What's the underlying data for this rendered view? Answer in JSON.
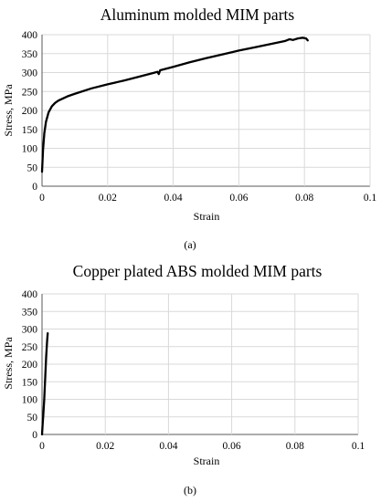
{
  "chart_data": [
    {
      "type": "line",
      "title": "Aluminum molded MIM parts",
      "xlabel": "Strain",
      "ylabel": "Stress, MPa",
      "xlim": [
        0,
        0.1
      ],
      "ylim": [
        0,
        400
      ],
      "x_ticks": [
        "0",
        "0.02",
        "0.04",
        "0.06",
        "0.08",
        "0.1"
      ],
      "y_ticks": [
        "0",
        "50",
        "100",
        "150",
        "200",
        "250",
        "300",
        "350",
        "400"
      ],
      "grid": true,
      "caption": "(a)",
      "series": [
        {
          "points": [
            [
              0.0,
              38
            ],
            [
              0.0003,
              95
            ],
            [
              0.0007,
              140
            ],
            [
              0.0012,
              170
            ],
            [
              0.002,
              195
            ],
            [
              0.003,
              211
            ],
            [
              0.004,
              220
            ],
            [
              0.005,
              226
            ],
            [
              0.0065,
              232
            ],
            [
              0.008,
              238
            ],
            [
              0.01,
              244
            ],
            [
              0.015,
              258
            ],
            [
              0.02,
              269
            ],
            [
              0.025,
              279
            ],
            [
              0.03,
              290
            ],
            [
              0.034,
              299
            ],
            [
              0.0352,
              302
            ],
            [
              0.0356,
              296
            ],
            [
              0.036,
              306
            ],
            [
              0.04,
              315
            ],
            [
              0.045,
              327
            ],
            [
              0.05,
              338
            ],
            [
              0.055,
              348
            ],
            [
              0.06,
              358
            ],
            [
              0.065,
              367
            ],
            [
              0.07,
              376
            ],
            [
              0.074,
              383
            ],
            [
              0.0755,
              388
            ],
            [
              0.0765,
              386
            ],
            [
              0.078,
              390
            ],
            [
              0.0795,
              392
            ],
            [
              0.0805,
              390
            ],
            [
              0.081,
              385
            ]
          ]
        }
      ]
    },
    {
      "type": "line",
      "title": "Copper plated ABS molded MIM parts",
      "xlabel": "Strain",
      "ylabel": "Stress, MPa",
      "xlim": [
        0,
        0.1
      ],
      "ylim": [
        0,
        400
      ],
      "x_ticks": [
        "0",
        "0.02",
        "0.04",
        "0.06",
        "0.08",
        "0.1"
      ],
      "y_ticks": [
        "0",
        "50",
        "100",
        "150",
        "200",
        "250",
        "300",
        "350",
        "400"
      ],
      "grid": true,
      "caption": "(b)",
      "series": [
        {
          "points": [
            [
              0.0,
              0
            ],
            [
              0.0002,
              30
            ],
            [
              0.0004,
              55
            ],
            [
              0.0007,
              100
            ],
            [
              0.001,
              160
            ],
            [
              0.0013,
              220
            ],
            [
              0.0016,
              265
            ],
            [
              0.0018,
              288
            ]
          ]
        }
      ]
    }
  ]
}
